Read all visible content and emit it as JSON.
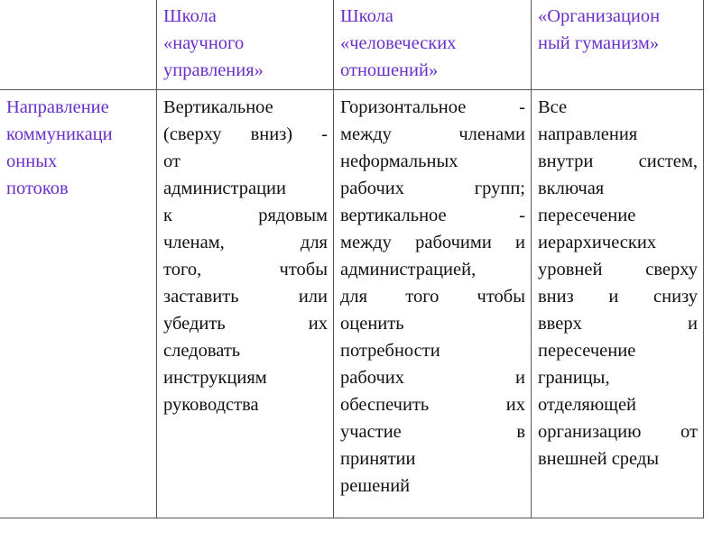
{
  "table": {
    "header": [
      {
        "lines": []
      },
      {
        "lines": [
          "Школа",
          "«научного",
          "управления»"
        ]
      },
      {
        "lines": [
          "Школа",
          "«человеческих",
          "отношений»"
        ]
      },
      {
        "lines": [
          "«Организацион",
          "ный гуманизм»"
        ]
      }
    ],
    "row": [
      {
        "lines": [
          "Направление",
          "коммуникаци",
          "онных",
          "потоков"
        ]
      },
      {
        "lines": [
          "Вертикальное",
          "(сверху вниз) -",
          "от",
          "администрации",
          "к рядовым",
          "членам, для",
          "того, чтобы",
          "заставить или",
          "убедить их",
          "следовать",
          "инструкциям",
          "руководства"
        ]
      },
      {
        "lines": [
          "Горизонтальное -",
          "между членами",
          "неформальных",
          "рабочих групп;",
          "вертикальное -",
          "между рабочими и",
          "администрацией,",
          "для того чтобы",
          "оценить",
          "потребности",
          "рабочих и",
          "обеспечить их",
          "участие в",
          "принятии",
          "решений"
        ]
      },
      {
        "lines": [
          "Все",
          "направления",
          "внутри систем,",
          "включая",
          "пересечение",
          "иерархических",
          "уровней сверху",
          "вниз и снизу",
          "вверх и",
          "пересечение",
          "границы,",
          "отделяющей",
          "организацию от",
          "внешней среды"
        ]
      }
    ]
  },
  "colors": {
    "accent": "#6a2fc8",
    "text": "#111111",
    "border": "#555555"
  }
}
